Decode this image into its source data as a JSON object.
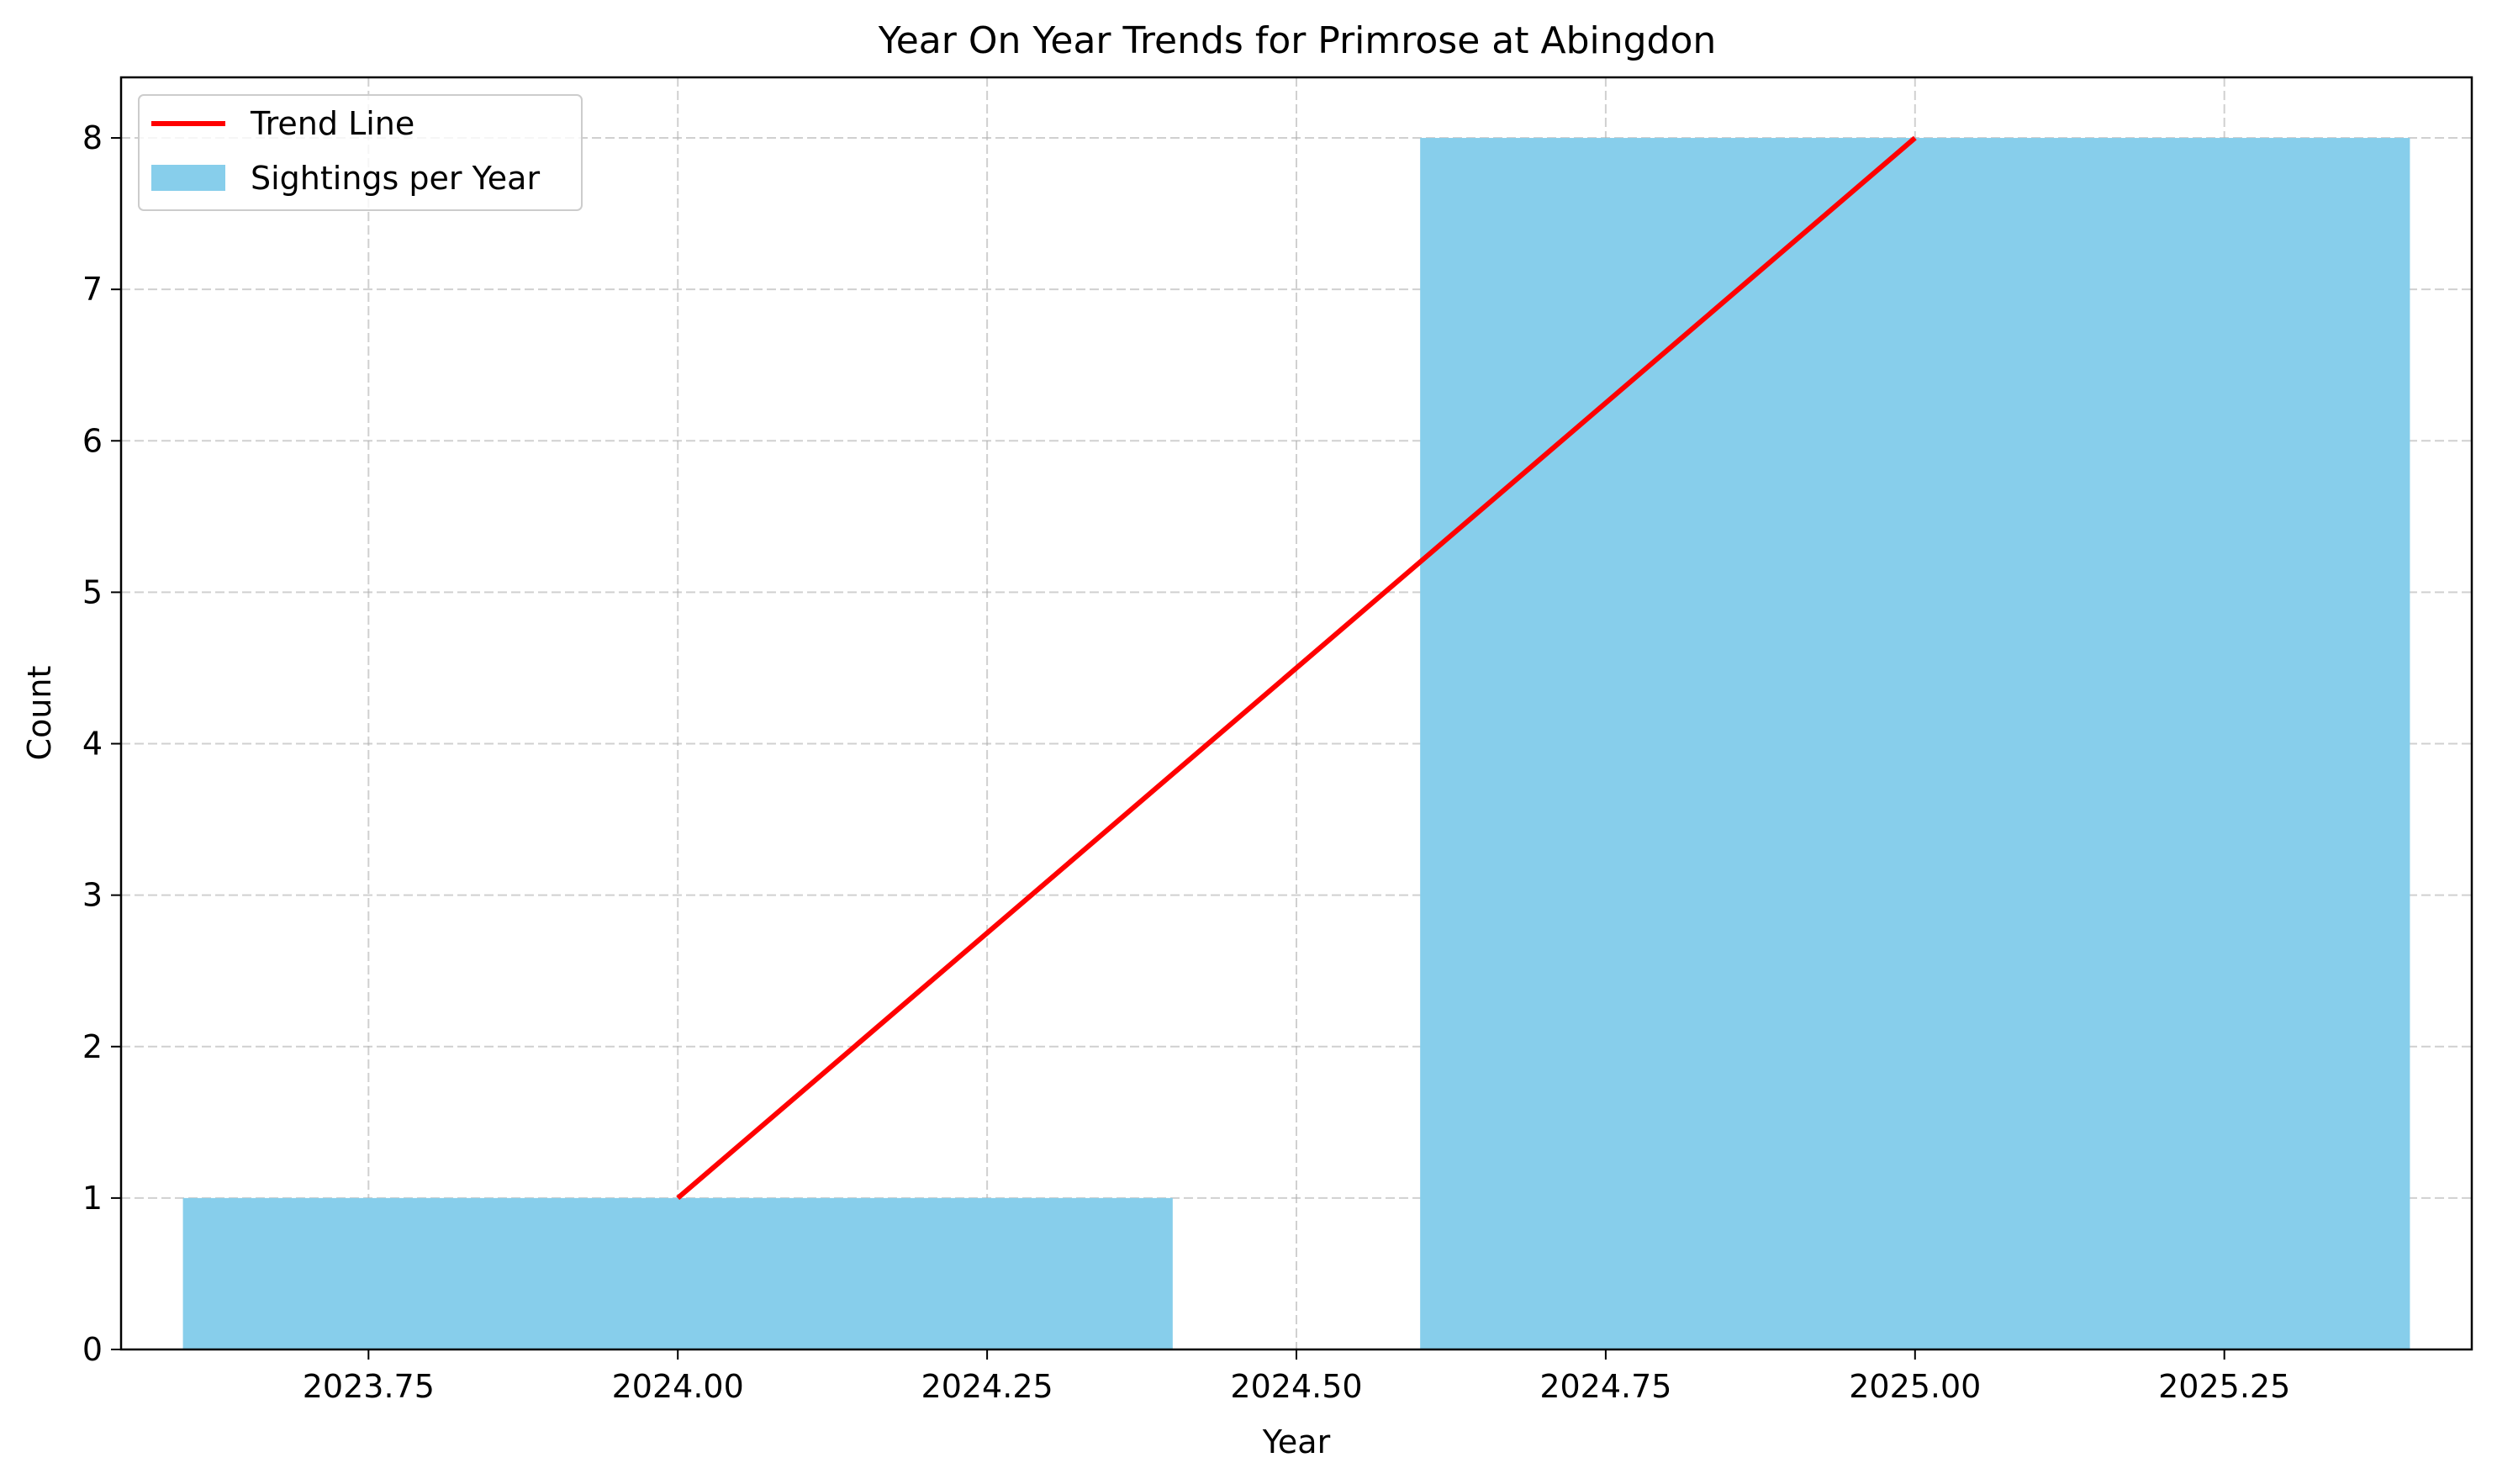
{
  "chart_data": {
    "type": "bar",
    "title": "Year On Year Trends for Primrose at Abingdon",
    "xlabel": "Year",
    "ylabel": "Count",
    "xlim": [
      2023.55,
      2025.45
    ],
    "ylim": [
      0,
      8.4
    ],
    "xticks": [
      "2023.75",
      "2024.00",
      "2024.25",
      "2024.50",
      "2024.75",
      "2025.00",
      "2025.25"
    ],
    "yticks": [
      "0",
      "1",
      "2",
      "3",
      "4",
      "5",
      "6",
      "7",
      "8"
    ],
    "grid": true,
    "legend_position": "top-left",
    "bars": {
      "name": "Sightings per Year",
      "x": [
        2024,
        2025
      ],
      "values": [
        1,
        8
      ],
      "width": 0.8,
      "color": "#87CEEB"
    },
    "trend_line": {
      "name": "Trend Line",
      "x": [
        2024,
        2025
      ],
      "y": [
        1,
        8
      ],
      "color": "#FF0000"
    }
  }
}
